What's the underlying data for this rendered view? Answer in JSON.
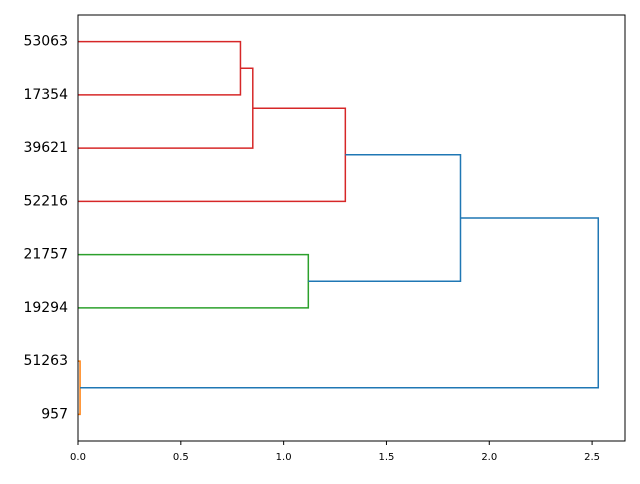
{
  "chart_data": {
    "type": "dendrogram",
    "xlim": [
      0,
      2.66
    ],
    "xticks": [
      {
        "value": 0,
        "label": "0.0"
      },
      0.5,
      {
        "value": 1,
        "label": "1.0"
      },
      1.5,
      {
        "value": 2,
        "label": "2.0"
      },
      2.5
    ],
    "tree": {
      "height": 2.53,
      "color": "#1f77b4",
      "children": [
        {
          "height": 0.01,
          "color": "#ff7f0e",
          "children": [
            {
              "label": "957"
            },
            {
              "label": "51263"
            }
          ]
        },
        {
          "height": 1.86,
          "color": "#1f77b4",
          "children": [
            {
              "height": 1.12,
              "color": "#2ca02c",
              "children": [
                {
                  "label": "19294"
                },
                {
                  "label": "21757"
                }
              ]
            },
            {
              "height": 1.3,
              "color": "#d62728",
              "children": [
                {
                  "label": "52216"
                },
                {
                  "height": 0.85,
                  "color": "#d62728",
                  "children": [
                    {
                      "label": "39621"
                    },
                    {
                      "height": 0.79,
                      "color": "#d62728",
                      "children": [
                        {
                          "label": "17354"
                        },
                        {
                          "label": "53063"
                        }
                      ]
                    }
                  ]
                }
              ]
            }
          ]
        }
      ]
    }
  }
}
